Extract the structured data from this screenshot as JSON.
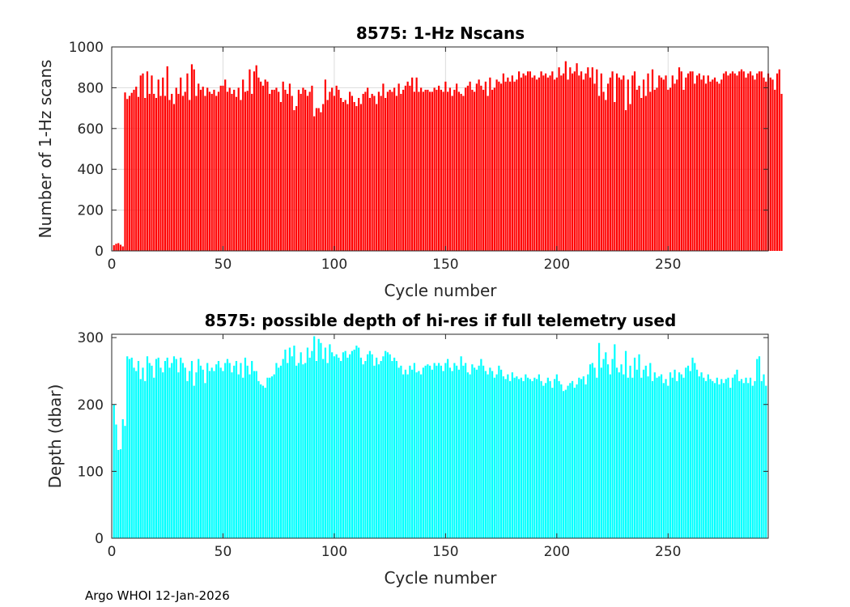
{
  "footer": "Argo WHOI 12-Jan-2026",
  "chart_data": [
    {
      "type": "bar",
      "title": "8575: 1-Hz Nscans",
      "xlabel": "Cycle number",
      "ylabel": "Number of 1-Hz scans",
      "xlim": [
        0,
        295
      ],
      "ylim": [
        0,
        1000
      ],
      "xticks": [
        0,
        50,
        100,
        150,
        200,
        250
      ],
      "yticks": [
        0,
        200,
        400,
        600,
        800,
        1000
      ],
      "grid": true,
      "color": "#ff0000",
      "x_start": 1,
      "values": [
        28,
        35,
        38,
        30,
        22,
        777,
        745,
        760,
        775,
        790,
        805,
        755,
        860,
        870,
        750,
        880,
        770,
        860,
        770,
        750,
        840,
        760,
        850,
        760,
        905,
        740,
        770,
        720,
        800,
        770,
        850,
        760,
        780,
        870,
        740,
        915,
        890,
        760,
        820,
        790,
        805,
        760,
        800,
        780,
        770,
        790,
        760,
        780,
        810,
        810,
        840,
        780,
        800,
        770,
        790,
        755,
        800,
        740,
        840,
        780,
        785,
        890,
        770,
        880,
        910,
        850,
        830,
        810,
        840,
        830,
        770,
        790,
        790,
        800,
        780,
        730,
        830,
        790,
        770,
        820,
        760,
        690,
        710,
        790,
        770,
        800,
        790,
        760,
        780,
        810,
        660,
        700,
        700,
        680,
        720,
        840,
        740,
        780,
        800,
        760,
        810,
        790,
        750,
        730,
        740,
        720,
        780,
        760,
        730,
        710,
        750,
        720,
        770,
        780,
        800,
        750,
        770,
        760,
        720,
        780,
        760,
        820,
        750,
        780,
        790,
        780,
        800,
        760,
        820,
        770,
        790,
        810,
        830,
        810,
        850,
        780,
        850,
        780,
        800,
        780,
        790,
        790,
        780,
        780,
        800,
        790,
        810,
        790,
        780,
        830,
        780,
        800,
        760,
        790,
        820,
        780,
        770,
        760,
        800,
        810,
        830,
        790,
        780,
        820,
        840,
        810,
        790,
        830,
        760,
        850,
        790,
        800,
        840,
        830,
        820,
        870,
        830,
        850,
        830,
        860,
        830,
        840,
        880,
        850,
        870,
        860,
        880,
        880,
        850,
        860,
        840,
        850,
        880,
        860,
        870,
        850,
        860,
        880,
        840,
        850,
        900,
        860,
        870,
        930,
        840,
        900,
        870,
        880,
        920,
        860,
        880,
        840,
        870,
        900,
        850,
        900,
        820,
        890,
        760,
        870,
        780,
        740,
        820,
        850,
        880,
        730,
        870,
        850,
        840,
        860,
        690,
        840,
        720,
        860,
        880,
        790,
        810,
        750,
        840,
        760,
        870,
        780,
        890,
        790,
        800,
        860,
        850,
        840,
        860,
        790,
        800,
        860,
        820,
        840,
        900,
        880,
        790,
        850,
        870,
        880,
        880,
        820,
        860,
        870,
        840,
        860,
        820,
        860,
        830,
        840,
        850,
        830,
        820,
        840,
        870,
        880,
        860,
        870,
        880,
        870,
        860,
        880,
        890,
        880,
        850,
        870,
        880,
        860,
        840,
        870,
        880,
        880,
        850,
        830,
        870,
        850,
        840,
        790,
        870,
        890,
        770
      ]
    },
    {
      "type": "bar",
      "title": "8575: possible depth of hi-res if full telemetry used",
      "xlabel": "Cycle number",
      "ylabel": "Depth (dbar)",
      "xlim": [
        0,
        295
      ],
      "ylim": [
        0,
        305
      ],
      "xticks": [
        0,
        50,
        100,
        150,
        200,
        250
      ],
      "yticks": [
        0,
        100,
        200,
        300
      ],
      "grid": false,
      "color": "#00ffff",
      "x_start": 1,
      "values": [
        200,
        170,
        132,
        133,
        178,
        168,
        272,
        268,
        270,
        255,
        250,
        265,
        238,
        255,
        235,
        272,
        262,
        258,
        240,
        268,
        270,
        255,
        248,
        265,
        270,
        255,
        262,
        272,
        268,
        248,
        270,
        262,
        255,
        235,
        250,
        265,
        228,
        248,
        268,
        258,
        252,
        232,
        262,
        250,
        255,
        250,
        260,
        265,
        255,
        250,
        262,
        268,
        262,
        248,
        258,
        265,
        245,
        262,
        240,
        270,
        258,
        245,
        265,
        250,
        250,
        235,
        230,
        228,
        225,
        240,
        240,
        242,
        245,
        262,
        255,
        258,
        268,
        282,
        262,
        285,
        272,
        288,
        258,
        262,
        278,
        260,
        262,
        285,
        270,
        280,
        302,
        265,
        298,
        292,
        268,
        285,
        262,
        290,
        278,
        272,
        275,
        270,
        265,
        278,
        280,
        270,
        275,
        280,
        282,
        288,
        285,
        270,
        260,
        265,
        275,
        280,
        275,
        258,
        270,
        260,
        265,
        272,
        280,
        278,
        275,
        265,
        270,
        265,
        255,
        258,
        245,
        252,
        245,
        258,
        252,
        262,
        248,
        250,
        245,
        255,
        258,
        260,
        258,
        252,
        262,
        258,
        262,
        258,
        250,
        262,
        268,
        255,
        250,
        262,
        258,
        252,
        272,
        258,
        262,
        248,
        245,
        260,
        255,
        252,
        258,
        268,
        258,
        250,
        245,
        255,
        250,
        240,
        245,
        258,
        252,
        242,
        238,
        245,
        235,
        248,
        240,
        242,
        238,
        240,
        235,
        245,
        240,
        238,
        235,
        240,
        238,
        245,
        235,
        228,
        232,
        240,
        235,
        225,
        238,
        245,
        235,
        230,
        220,
        222,
        228,
        232,
        235,
        225,
        230,
        240,
        238,
        242,
        230,
        245,
        260,
        262,
        255,
        240,
        292,
        255,
        268,
        278,
        260,
        245,
        268,
        290,
        255,
        248,
        260,
        245,
        280,
        240,
        258,
        240,
        270,
        252,
        275,
        240,
        252,
        258,
        242,
        262,
        235,
        248,
        240,
        242,
        245,
        232,
        238,
        228,
        248,
        240,
        252,
        235,
        248,
        245,
        240,
        255,
        258,
        250,
        270,
        262,
        252,
        242,
        248,
        240,
        235,
        245,
        238,
        235,
        232,
        240,
        230,
        238,
        232,
        238,
        240,
        225,
        240,
        245,
        252,
        235,
        238,
        232,
        240,
        232,
        240,
        228,
        235,
        268,
        272,
        235,
        245,
        228
      ]
    }
  ]
}
